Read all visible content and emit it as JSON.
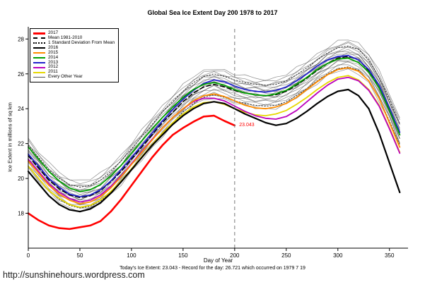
{
  "page": {
    "url": "http://sunshinehours.wordpress.com"
  },
  "chart_data": {
    "type": "line",
    "title": "Global Sea Ice Extent Day 200 1978 to 2017",
    "xlabel": "Day of Year",
    "ylabel": "Ice Extent in millions of sq km",
    "footnote": "Today's Ice Extent: 23.043 - Record for the day: 26.721 which occurred on 1979 7 19",
    "x_ticks": [
      0,
      50,
      100,
      150,
      200,
      250,
      300,
      350
    ],
    "y_ticks": [
      18,
      20,
      22,
      24,
      26,
      28
    ],
    "xlim": [
      0,
      368
    ],
    "ylim": [
      16.0,
      28.7
    ],
    "grid": false,
    "legend_position": "top-left",
    "x": [
      0,
      10,
      20,
      30,
      40,
      50,
      60,
      70,
      80,
      90,
      100,
      110,
      120,
      130,
      140,
      150,
      160,
      170,
      180,
      190,
      200,
      210,
      220,
      230,
      240,
      250,
      260,
      270,
      280,
      290,
      300,
      310,
      320,
      330,
      340,
      350,
      360
    ],
    "mean_1981_2010": [
      21.3,
      20.6,
      19.9,
      19.4,
      19.05,
      18.9,
      19.0,
      19.3,
      19.8,
      20.4,
      21.1,
      21.8,
      22.5,
      23.2,
      23.8,
      24.4,
      24.9,
      25.25,
      25.4,
      25.25,
      25.05,
      24.9,
      24.8,
      24.75,
      24.8,
      25.0,
      25.35,
      25.75,
      26.2,
      26.6,
      26.9,
      27.0,
      26.8,
      26.2,
      25.2,
      23.9,
      22.5
    ],
    "std_dev": 0.6,
    "series": [
      {
        "name": "2017",
        "color": "#FF0000",
        "width": 2.6,
        "values": [
          18.0,
          17.6,
          17.3,
          17.15,
          17.1,
          17.2,
          17.3,
          17.55,
          18.1,
          18.8,
          19.6,
          20.4,
          21.2,
          21.9,
          22.5,
          22.9,
          23.25,
          23.55,
          23.6,
          23.3,
          23.04
        ]
      },
      {
        "name": "2016",
        "color": "#000000",
        "width": 2.2,
        "values": [
          20.4,
          19.7,
          19.0,
          18.5,
          18.2,
          18.1,
          18.25,
          18.6,
          19.15,
          19.8,
          20.5,
          21.2,
          21.9,
          22.5,
          23.1,
          23.6,
          24.0,
          24.3,
          24.4,
          24.3,
          24.0,
          23.7,
          23.45,
          23.2,
          23.05,
          23.15,
          23.45,
          23.85,
          24.3,
          24.7,
          25.0,
          25.1,
          24.75,
          24.0,
          22.6,
          20.9,
          19.2
        ]
      },
      {
        "name": "2015",
        "color": "#FF8C00",
        "width": 1.8,
        "values": [
          21.0,
          20.3,
          19.6,
          19.1,
          18.75,
          18.55,
          18.65,
          18.95,
          19.45,
          20.1,
          20.8,
          21.5,
          22.2,
          22.9,
          23.5,
          24.0,
          24.45,
          24.75,
          24.85,
          24.7,
          24.45,
          24.2,
          24.05,
          24.0,
          24.1,
          24.3,
          24.65,
          25.1,
          25.55,
          25.95,
          26.25,
          26.35,
          26.15,
          25.6,
          24.6,
          23.2,
          21.8
        ]
      },
      {
        "name": "2014",
        "color": "#00A000",
        "width": 1.8,
        "values": [
          21.8,
          21.1,
          20.4,
          19.85,
          19.45,
          19.25,
          19.35,
          19.65,
          20.15,
          20.75,
          21.45,
          22.15,
          22.85,
          23.5,
          24.1,
          24.65,
          25.1,
          25.4,
          25.5,
          25.35,
          25.1,
          24.9,
          24.8,
          24.75,
          24.85,
          25.05,
          25.4,
          25.8,
          26.25,
          26.6,
          26.85,
          26.9,
          26.65,
          26.1,
          25.2,
          23.9,
          22.5
        ]
      },
      {
        "name": "2013",
        "color": "#2222CC",
        "width": 1.8,
        "values": [
          21.4,
          20.7,
          20.0,
          19.5,
          19.1,
          18.95,
          19.05,
          19.35,
          19.85,
          20.5,
          21.2,
          21.9,
          22.6,
          23.3,
          23.95,
          24.55,
          25.05,
          25.45,
          25.65,
          25.55,
          25.3,
          25.1,
          25.0,
          24.95,
          25.05,
          25.25,
          25.6,
          26.0,
          26.45,
          26.8,
          27.0,
          27.05,
          26.8,
          26.25,
          25.35,
          24.05,
          22.65
        ]
      },
      {
        "name": "2012",
        "color": "#BB00BB",
        "width": 1.8,
        "values": [
          21.1,
          20.4,
          19.7,
          19.2,
          18.85,
          18.65,
          18.75,
          19.05,
          19.55,
          20.15,
          20.85,
          21.55,
          22.25,
          22.9,
          23.5,
          24.0,
          24.4,
          24.6,
          24.6,
          24.45,
          24.15,
          23.85,
          23.6,
          23.45,
          23.4,
          23.55,
          23.9,
          24.4,
          24.9,
          25.35,
          25.7,
          25.8,
          25.6,
          25.05,
          24.15,
          22.85,
          21.45
        ]
      },
      {
        "name": "2011",
        "color": "#E6D800",
        "width": 1.8,
        "values": [
          20.7,
          20.0,
          19.3,
          18.85,
          18.5,
          18.35,
          18.45,
          18.75,
          19.25,
          19.85,
          20.55,
          21.25,
          21.95,
          22.6,
          23.2,
          23.7,
          24.1,
          24.35,
          24.4,
          24.25,
          24.0,
          23.8,
          23.65,
          23.6,
          23.7,
          23.9,
          24.25,
          24.65,
          25.1,
          25.5,
          25.8,
          25.9,
          25.65,
          25.1,
          24.2,
          22.9,
          21.5
        ]
      }
    ],
    "background_offsets": [
      0.95,
      0.8,
      0.68,
      0.57,
      0.47,
      0.38,
      0.3,
      0.22,
      0.14,
      0.06,
      -0.02,
      -0.1,
      -0.18,
      -0.27,
      -0.37,
      -0.48,
      -0.6,
      -0.74
    ],
    "jitter": [
      0.06,
      -0.08,
      0.1,
      0.0,
      -0.09,
      0.07,
      -0.03,
      0.11,
      -0.06,
      0.02,
      -0.1,
      0.08,
      -0.01,
      0.05,
      -0.07,
      0.09,
      -0.04,
      0.03,
      -0.11
    ],
    "marker_day": 200,
    "annotation": {
      "text": "23.043",
      "day": 203,
      "value": 23.0,
      "color": "#FF0000"
    },
    "legend": [
      {
        "label": "2017",
        "color": "#FF0000",
        "style": "solid",
        "weight": 3
      },
      {
        "label": "Mean 1981-2010",
        "color": "#000000",
        "style": "dashed",
        "weight": 2
      },
      {
        "label": "1 Standard Deviation From Mean",
        "color": "#000000",
        "style": "dotted",
        "weight": 2
      },
      {
        "label": "2016",
        "color": "#000000",
        "style": "solid",
        "weight": 2
      },
      {
        "label": "2015",
        "color": "#FF8C00",
        "style": "solid",
        "weight": 2
      },
      {
        "label": "2014",
        "color": "#00A000",
        "style": "solid",
        "weight": 2
      },
      {
        "label": "2013",
        "color": "#2222CC",
        "style": "solid",
        "weight": 2
      },
      {
        "label": "2012",
        "color": "#BB00BB",
        "style": "solid",
        "weight": 2
      },
      {
        "label": "2011",
        "color": "#E6D800",
        "style": "solid",
        "weight": 2
      },
      {
        "label": "Every Other Year",
        "color": "#555555",
        "style": "solid",
        "weight": 1
      }
    ]
  }
}
